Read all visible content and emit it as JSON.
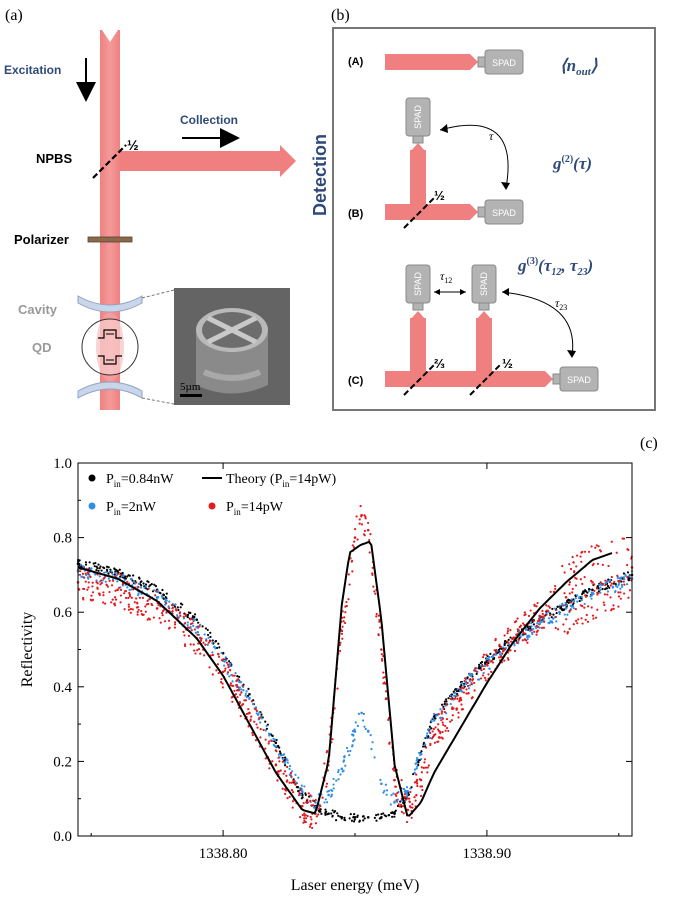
{
  "panels": {
    "a": {
      "label": "(a)",
      "excitation": "Excitation",
      "collection": "Collection",
      "npbs": "NPBS",
      "half": "½",
      "polarizer": "Polarizer",
      "cavity": "Cavity",
      "qd": "QD",
      "scale_bar": "5µm"
    },
    "b": {
      "label": "(b)",
      "detection": "Detection",
      "row_A": "(A)",
      "row_B": "(B)",
      "row_C": "(C)",
      "spad": "SPAD",
      "tau": "τ",
      "tau12": "τ12",
      "tau23": "τ23",
      "half": "½",
      "two_thirds": "⅔",
      "n_out": "⟨n_out⟩",
      "g2": "g(2)(τ)",
      "g3": "g(3)(τ12, τ23)"
    },
    "c": {
      "label": "(c)"
    }
  },
  "colors": {
    "beam": "#f08080",
    "spad_fill": "#b3b3b3",
    "detection_text": "#2e4a7a",
    "black_series": "#000000",
    "blue_series": "#2f8ee8",
    "red_series": "#e41a1c"
  },
  "chart_data": {
    "type": "scatter",
    "title": "",
    "xlabel": "Laser energy (meV)",
    "ylabel": "Reflectivity",
    "xlim": [
      1338.745,
      1338.955
    ],
    "ylim": [
      0.0,
      1.0
    ],
    "xticks": [
      "1338.80",
      "1338.90"
    ],
    "xtick_values": [
      1338.8,
      1338.9
    ],
    "yticks": [
      "0.0",
      "0.2",
      "0.4",
      "0.6",
      "0.8",
      "1.0"
    ],
    "ytick_values": [
      0.0,
      0.2,
      0.4,
      0.6,
      0.8,
      1.0
    ],
    "legend_position": "top-left",
    "series": [
      {
        "name": "Pin=0.84nW",
        "legend_main": "P",
        "legend_sub": "in",
        "legend_rest": "=0.84nW",
        "type": "scatter",
        "color": "#000000",
        "x": [
          1338.745,
          1338.76,
          1338.775,
          1338.79,
          1338.8,
          1338.81,
          1338.82,
          1338.83,
          1338.835,
          1338.84,
          1338.845,
          1338.85,
          1338.855,
          1338.86,
          1338.865,
          1338.87,
          1338.875,
          1338.88,
          1338.89,
          1338.9,
          1338.91,
          1338.92,
          1338.93,
          1338.94,
          1338.955
        ],
        "y": [
          0.73,
          0.71,
          0.66,
          0.58,
          0.49,
          0.38,
          0.25,
          0.11,
          0.08,
          0.06,
          0.05,
          0.05,
          0.05,
          0.05,
          0.06,
          0.11,
          0.22,
          0.32,
          0.4,
          0.47,
          0.53,
          0.58,
          0.62,
          0.66,
          0.7
        ]
      },
      {
        "name": "Pin=2nW",
        "legend_main": "P",
        "legend_sub": "in",
        "legend_rest": "=2nW",
        "type": "scatter",
        "color": "#2f8ee8",
        "x": [
          1338.745,
          1338.76,
          1338.775,
          1338.79,
          1338.8,
          1338.81,
          1338.82,
          1338.83,
          1338.835,
          1338.84,
          1338.845,
          1338.85,
          1338.8525,
          1338.855,
          1338.86,
          1338.865,
          1338.87,
          1338.875,
          1338.88,
          1338.89,
          1338.9,
          1338.91,
          1338.92,
          1338.93,
          1338.94,
          1338.955
        ],
        "y": [
          0.71,
          0.69,
          0.64,
          0.56,
          0.47,
          0.37,
          0.24,
          0.12,
          0.09,
          0.11,
          0.18,
          0.28,
          0.33,
          0.28,
          0.14,
          0.09,
          0.12,
          0.22,
          0.31,
          0.39,
          0.46,
          0.52,
          0.57,
          0.61,
          0.65,
          0.69
        ]
      },
      {
        "name": "Pin=14pW",
        "legend_main": "P",
        "legend_sub": "in",
        "legend_rest": "=14pW",
        "type": "scatter",
        "color": "#e41a1c",
        "x": [
          1338.745,
          1338.76,
          1338.775,
          1338.79,
          1338.8,
          1338.81,
          1338.82,
          1338.83,
          1338.835,
          1338.84,
          1338.845,
          1338.85,
          1338.8525,
          1338.855,
          1338.86,
          1338.865,
          1338.87,
          1338.875,
          1338.88,
          1338.89,
          1338.9,
          1338.91,
          1338.92,
          1338.93,
          1338.94,
          1338.955
        ],
        "y": [
          0.68,
          0.66,
          0.61,
          0.53,
          0.44,
          0.33,
          0.19,
          0.08,
          0.06,
          0.2,
          0.55,
          0.8,
          0.86,
          0.82,
          0.5,
          0.15,
          0.07,
          0.15,
          0.27,
          0.37,
          0.46,
          0.53,
          0.59,
          0.64,
          0.68,
          0.72
        ]
      },
      {
        "name": "Theory (Pin=14pW)",
        "legend_main": "Theory (P",
        "legend_sub": "in",
        "legend_rest": "=14pW)",
        "type": "line",
        "color": "#000000",
        "x": [
          1338.745,
          1338.76,
          1338.775,
          1338.79,
          1338.8,
          1338.81,
          1338.82,
          1338.83,
          1338.835,
          1338.84,
          1338.845,
          1338.848,
          1338.852,
          1338.856,
          1338.86,
          1338.865,
          1338.87,
          1338.875,
          1338.88,
          1338.89,
          1338.9,
          1338.91,
          1338.92,
          1338.93,
          1338.94,
          1338.948
        ],
        "y": [
          0.72,
          0.69,
          0.63,
          0.53,
          0.43,
          0.3,
          0.17,
          0.07,
          0.06,
          0.2,
          0.62,
          0.76,
          0.78,
          0.79,
          0.58,
          0.19,
          0.05,
          0.09,
          0.17,
          0.29,
          0.41,
          0.52,
          0.61,
          0.68,
          0.74,
          0.76
        ]
      }
    ]
  }
}
